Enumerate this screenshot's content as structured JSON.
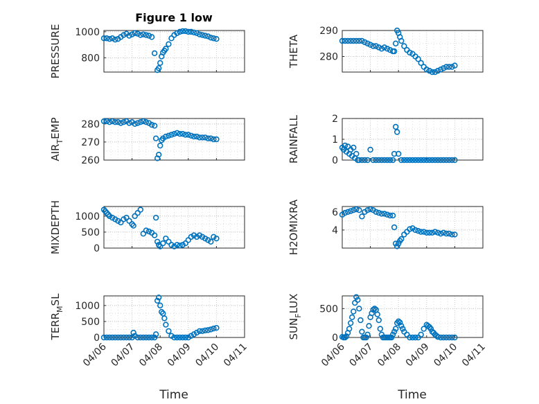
{
  "figure_title": "Figure 1 low",
  "colors": {
    "marker": "#0072bd",
    "axis": "#262626",
    "grid": "#c8c8c8"
  },
  "chart_data": [
    {
      "type": "scatter",
      "ylabel": "PRESSURE",
      "ylim": [
        690,
        1010
      ],
      "yticks": [
        800,
        1000
      ],
      "xlim": [
        "04/06",
        "04/11"
      ],
      "xticks": [
        "04/06",
        "04/07",
        "04/08",
        "04/09",
        "04/10",
        "04/11"
      ],
      "x": [
        0.0,
        0.1,
        0.2,
        0.3,
        0.4,
        0.5,
        0.6,
        0.7,
        0.8,
        0.9,
        1.0,
        1.1,
        1.2,
        1.3,
        1.4,
        1.5,
        1.6,
        1.7,
        1.8,
        1.9,
        1.95,
        2.0,
        2.05,
        2.1,
        2.15,
        2.2,
        2.3,
        2.4,
        2.5,
        2.6,
        2.7,
        2.8,
        2.9,
        3.0,
        3.1,
        3.2,
        3.3,
        3.4,
        3.5,
        3.6,
        3.7,
        3.8,
        3.9,
        4.0
      ],
      "y": [
        950,
        950,
        945,
        950,
        940,
        945,
        960,
        975,
        985,
        970,
        980,
        990,
        985,
        975,
        980,
        975,
        970,
        960,
        835,
        705,
        720,
        760,
        810,
        840,
        855,
        870,
        905,
        950,
        975,
        990,
        1000,
        1005,
        1005,
        1000,
        1000,
        995,
        990,
        980,
        975,
        970,
        965,
        955,
        950,
        945
      ]
    },
    {
      "type": "scatter",
      "ylabel": "THETA",
      "ylim": [
        274,
        290
      ],
      "yticks": [
        280,
        290
      ],
      "xlim": [
        "04/06",
        "04/11"
      ],
      "xticks": [
        "04/06",
        "04/07",
        "04/08",
        "04/09",
        "04/10",
        "04/11"
      ],
      "x": [
        0.0,
        0.1,
        0.2,
        0.3,
        0.4,
        0.5,
        0.6,
        0.7,
        0.8,
        0.9,
        1.0,
        1.1,
        1.2,
        1.3,
        1.4,
        1.5,
        1.6,
        1.7,
        1.8,
        1.85,
        1.9,
        1.95,
        2.0,
        2.05,
        2.1,
        2.2,
        2.3,
        2.4,
        2.5,
        2.6,
        2.7,
        2.8,
        2.9,
        3.0,
        3.1,
        3.2,
        3.3,
        3.4,
        3.5,
        3.6,
        3.7,
        3.8,
        3.9,
        4.0
      ],
      "y": [
        286,
        286,
        286,
        286,
        286,
        286,
        286,
        286,
        285.5,
        285,
        284.5,
        284,
        284,
        283.5,
        283,
        283.5,
        283,
        282.5,
        282,
        282,
        285,
        290,
        289,
        287.5,
        286,
        284,
        282.5,
        281.5,
        281,
        280,
        279,
        277.5,
        276,
        275,
        274.5,
        274,
        274,
        274.5,
        275,
        275.5,
        276,
        276,
        276,
        276.5
      ]
    },
    {
      "type": "scatter",
      "ylabel": "AIR_TEMP",
      "ylim": [
        260,
        283
      ],
      "yticks": [
        260,
        270,
        280
      ],
      "xlim": [
        "04/06",
        "04/11"
      ],
      "xticks": [
        "04/06",
        "04/07",
        "04/08",
        "04/09",
        "04/10",
        "04/11"
      ],
      "x": [
        0.0,
        0.1,
        0.2,
        0.3,
        0.4,
        0.5,
        0.6,
        0.7,
        0.8,
        0.9,
        1.0,
        1.1,
        1.2,
        1.3,
        1.4,
        1.5,
        1.6,
        1.7,
        1.8,
        1.85,
        1.9,
        1.95,
        2.0,
        2.05,
        2.1,
        2.2,
        2.3,
        2.4,
        2.5,
        2.6,
        2.7,
        2.8,
        2.9,
        3.0,
        3.1,
        3.2,
        3.3,
        3.4,
        3.5,
        3.6,
        3.7,
        3.8,
        3.9,
        4.0
      ],
      "y": [
        281.5,
        281.5,
        281,
        281.5,
        281,
        281,
        280.5,
        281,
        281.5,
        280.5,
        281,
        280,
        280.5,
        281,
        281.5,
        281,
        280.5,
        279.5,
        279,
        272,
        261,
        263,
        268,
        271,
        272,
        273,
        273.5,
        274,
        274.5,
        275,
        274.5,
        274.5,
        274,
        274,
        273.5,
        273,
        273,
        272.5,
        272.5,
        272.5,
        272,
        272,
        271.5,
        271.5
      ]
    },
    {
      "type": "scatter",
      "ylabel": "RAINFALL",
      "ylim": [
        0,
        2
      ],
      "yticks": [
        0,
        1,
        2
      ],
      "xlim": [
        "04/06",
        "04/11"
      ],
      "xticks": [
        "04/06",
        "04/07",
        "04/08",
        "04/09",
        "04/10",
        "04/11"
      ],
      "x": [
        0.0,
        0.05,
        0.1,
        0.15,
        0.2,
        0.25,
        0.3,
        0.35,
        0.4,
        0.45,
        0.5,
        0.55,
        0.6,
        0.7,
        0.8,
        0.9,
        1.0,
        1.1,
        1.2,
        1.3,
        1.4,
        1.5,
        1.6,
        1.7,
        1.8,
        1.85,
        1.9,
        1.95,
        2.0,
        2.1,
        2.2,
        2.3,
        2.4,
        2.5,
        2.6,
        2.7,
        2.8,
        2.9,
        3.0,
        3.1,
        3.2,
        3.3,
        3.4,
        3.5,
        3.6,
        3.7,
        3.8,
        3.9,
        4.0
      ],
      "y": [
        0.6,
        0.5,
        0.7,
        0.4,
        0.65,
        0.3,
        0.5,
        0.2,
        0.6,
        0.1,
        0.3,
        0.0,
        0.0,
        0.0,
        0.0,
        0.0,
        0.5,
        0.0,
        0.0,
        0.0,
        0.0,
        0.0,
        0.0,
        0.0,
        0.0,
        0.3,
        1.6,
        1.35,
        0.3,
        0.0,
        0.0,
        0.0,
        0.0,
        0.0,
        0.0,
        0.0,
        0.0,
        0.0,
        0.0,
        0.0,
        0.0,
        0.0,
        0.0,
        0.0,
        0.0,
        0.0,
        0.0,
        0.0,
        0.0
      ]
    },
    {
      "type": "scatter",
      "ylabel": "MIXDEPTH",
      "ylim": [
        0,
        1300
      ],
      "yticks": [
        0,
        500,
        1000
      ],
      "xlim": [
        "04/06",
        "04/11"
      ],
      "xticks": [
        "04/06",
        "04/07",
        "04/08",
        "04/09",
        "04/10",
        "04/11"
      ],
      "x": [
        0.0,
        0.05,
        0.1,
        0.15,
        0.2,
        0.3,
        0.4,
        0.5,
        0.6,
        0.7,
        0.8,
        0.9,
        1.0,
        1.05,
        1.1,
        1.2,
        1.3,
        1.4,
        1.5,
        1.6,
        1.7,
        1.8,
        1.85,
        1.9,
        1.95,
        2.0,
        2.1,
        2.2,
        2.3,
        2.4,
        2.5,
        2.6,
        2.7,
        2.8,
        2.9,
        3.0,
        3.1,
        3.2,
        3.3,
        3.4,
        3.5,
        3.6,
        3.7,
        3.8,
        3.9,
        4.0
      ],
      "y": [
        1200,
        1150,
        1100,
        1050,
        1000,
        950,
        900,
        850,
        800,
        900,
        950,
        850,
        750,
        700,
        1000,
        1100,
        1200,
        450,
        550,
        520,
        480,
        400,
        950,
        200,
        100,
        50,
        150,
        300,
        200,
        100,
        50,
        100,
        80,
        100,
        150,
        250,
        350,
        400,
        350,
        400,
        350,
        300,
        250,
        200,
        350,
        300
      ]
    },
    {
      "type": "scatter",
      "ylabel": "H2OMIXRA",
      "ylim": [
        2,
        6.6
      ],
      "yticks": [
        4,
        6
      ],
      "xlim": [
        "04/06",
        "04/11"
      ],
      "xticks": [
        "04/06",
        "04/07",
        "04/08",
        "04/09",
        "04/10",
        "04/11"
      ],
      "x": [
        0.0,
        0.1,
        0.2,
        0.3,
        0.4,
        0.5,
        0.6,
        0.7,
        0.8,
        0.9,
        1.0,
        1.1,
        1.2,
        1.3,
        1.4,
        1.5,
        1.6,
        1.7,
        1.8,
        1.85,
        1.9,
        1.95,
        2.0,
        2.05,
        2.1,
        2.2,
        2.3,
        2.4,
        2.5,
        2.6,
        2.7,
        2.8,
        2.9,
        3.0,
        3.1,
        3.2,
        3.3,
        3.4,
        3.5,
        3.6,
        3.7,
        3.8,
        3.9,
        4.0
      ],
      "y": [
        5.7,
        5.9,
        6.0,
        6.1,
        6.2,
        6.3,
        6.2,
        5.5,
        6.0,
        6.2,
        6.3,
        6.2,
        6.0,
        5.9,
        5.8,
        5.8,
        5.7,
        5.6,
        5.6,
        4.3,
        2.5,
        2.2,
        2.5,
        2.8,
        3.0,
        3.5,
        3.8,
        4.1,
        4.2,
        4.0,
        3.9,
        3.8,
        3.8,
        3.7,
        3.7,
        3.7,
        3.8,
        3.7,
        3.6,
        3.7,
        3.6,
        3.6,
        3.5,
        3.5
      ]
    },
    {
      "type": "scatter",
      "ylabel": "TERR_MSL",
      "ylim": [
        0,
        1300
      ],
      "yticks": [
        0,
        500,
        1000
      ],
      "xlim": [
        "04/06",
        "04/11"
      ],
      "xticks": [
        "04/06",
        "04/07",
        "04/08",
        "04/09",
        "04/10",
        "04/11"
      ],
      "x": [
        0.0,
        0.1,
        0.2,
        0.3,
        0.4,
        0.5,
        0.6,
        0.7,
        0.8,
        0.9,
        1.0,
        1.05,
        1.1,
        1.2,
        1.3,
        1.4,
        1.5,
        1.6,
        1.7,
        1.8,
        1.85,
        1.9,
        1.95,
        2.0,
        2.05,
        2.1,
        2.15,
        2.2,
        2.3,
        2.4,
        2.5,
        2.6,
        2.7,
        2.8,
        2.9,
        3.0,
        3.1,
        3.2,
        3.3,
        3.4,
        3.5,
        3.6,
        3.7,
        3.8,
        3.9,
        4.0
      ],
      "y": [
        0,
        0,
        0,
        0,
        0,
        0,
        0,
        0,
        0,
        0,
        0,
        150,
        50,
        0,
        0,
        0,
        0,
        0,
        0,
        0,
        100,
        1150,
        1250,
        1000,
        800,
        750,
        600,
        400,
        200,
        50,
        0,
        0,
        0,
        0,
        0,
        0,
        50,
        100,
        150,
        200,
        200,
        220,
        230,
        250,
        280,
        300
      ]
    },
    {
      "type": "scatter",
      "ylabel": "SUN_FLUX",
      "ylim": [
        0,
        720
      ],
      "yticks": [
        0,
        500
      ],
      "xlim": [
        "04/06",
        "04/11"
      ],
      "xticks": [
        "04/06",
        "04/07",
        "04/08",
        "04/09",
        "04/10",
        "04/11"
      ],
      "x": [
        0.0,
        0.05,
        0.1,
        0.15,
        0.2,
        0.25,
        0.3,
        0.35,
        0.4,
        0.45,
        0.5,
        0.55,
        0.6,
        0.65,
        0.7,
        0.75,
        0.8,
        0.85,
        0.9,
        0.95,
        1.0,
        1.05,
        1.1,
        1.15,
        1.2,
        1.25,
        1.3,
        1.35,
        1.4,
        1.45,
        1.5,
        1.55,
        1.6,
        1.65,
        1.7,
        1.75,
        1.8,
        1.85,
        1.9,
        1.95,
        2.0,
        2.05,
        2.1,
        2.15,
        2.2,
        2.3,
        2.4,
        2.5,
        2.6,
        2.7,
        2.8,
        2.9,
        3.0,
        3.05,
        3.1,
        3.15,
        3.2,
        3.25,
        3.3,
        3.35,
        3.4,
        3.5,
        3.6,
        3.7,
        3.8,
        3.9,
        4.0
      ],
      "y": [
        10,
        0,
        0,
        20,
        80,
        150,
        250,
        350,
        450,
        600,
        700,
        650,
        500,
        300,
        100,
        0,
        0,
        0,
        50,
        200,
        350,
        420,
        480,
        500,
        480,
        400,
        300,
        150,
        50,
        0,
        0,
        0,
        0,
        0,
        0,
        0,
        50,
        100,
        150,
        250,
        280,
        260,
        200,
        150,
        100,
        50,
        0,
        0,
        0,
        0,
        50,
        150,
        220,
        200,
        180,
        150,
        100,
        80,
        50,
        30,
        10,
        0,
        0,
        0,
        0,
        0,
        0
      ]
    }
  ],
  "xlabel": "Time"
}
